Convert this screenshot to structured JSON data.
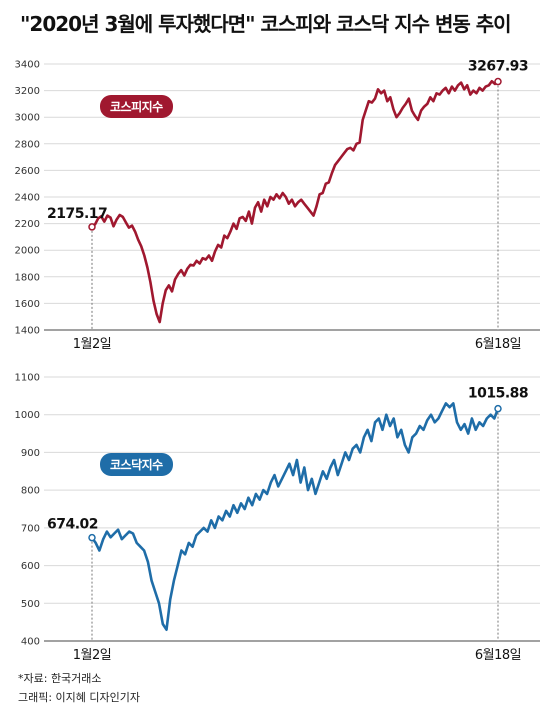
{
  "title": "\"2020년 3월에 투자했다면\" 코스피와 코스닥 지수 변동 추이",
  "footer": {
    "source": "*자료: 한국거래소",
    "credit": "그래픽: 이지혜 디자인기자"
  },
  "chart_data": [
    {
      "type": "line",
      "name": "코스피지수",
      "color": "#a0182f",
      "ylim": [
        1400,
        3400
      ],
      "yticks": [
        1400,
        1600,
        1800,
        2000,
        2200,
        2400,
        2600,
        2800,
        3000,
        3200,
        3400
      ],
      "yticklabels": [
        "1400",
        "1600",
        "1800",
        "2000",
        "2200",
        "2400",
        "2600",
        "2800",
        "3000",
        "3200",
        "3400"
      ],
      "xticklabels": [
        "1월2일",
        "6월18일"
      ],
      "start_label": "2175.17",
      "end_label": "3267.93",
      "series": [
        {
          "name": "코스피지수",
          "values": [
            2175,
            2195,
            2240,
            2255,
            2215,
            2260,
            2245,
            2180,
            2230,
            2265,
            2250,
            2210,
            2170,
            2185,
            2140,
            2080,
            2030,
            1960,
            1870,
            1760,
            1620,
            1520,
            1460,
            1600,
            1700,
            1735,
            1690,
            1780,
            1820,
            1850,
            1810,
            1860,
            1890,
            1885,
            1920,
            1900,
            1940,
            1930,
            1960,
            1920,
            1990,
            2040,
            2020,
            2110,
            2090,
            2140,
            2200,
            2160,
            2240,
            2250,
            2220,
            2290,
            2200,
            2320,
            2360,
            2290,
            2380,
            2330,
            2400,
            2380,
            2420,
            2390,
            2430,
            2400,
            2350,
            2380,
            2330,
            2360,
            2380,
            2350,
            2320,
            2290,
            2260,
            2330,
            2420,
            2430,
            2500,
            2510,
            2580,
            2640,
            2670,
            2700,
            2730,
            2760,
            2770,
            2750,
            2800,
            2810,
            2980,
            3050,
            3120,
            3110,
            3140,
            3210,
            3180,
            3200,
            3120,
            3150,
            3060,
            3000,
            3030,
            3070,
            3100,
            3140,
            3050,
            3010,
            2980,
            3050,
            3080,
            3100,
            3150,
            3120,
            3180,
            3170,
            3200,
            3220,
            3180,
            3230,
            3200,
            3240,
            3260,
            3210,
            3240,
            3170,
            3200,
            3180,
            3220,
            3200,
            3230,
            3240,
            3270,
            3250,
            3268
          ]
        }
      ]
    },
    {
      "type": "line",
      "name": "코스닥지수",
      "color": "#1f6da8",
      "ylim": [
        400,
        1100
      ],
      "yticks": [
        400,
        500,
        600,
        700,
        800,
        900,
        1000,
        1100
      ],
      "yticklabels": [
        "400",
        "500",
        "600",
        "700",
        "800",
        "900",
        "1000",
        "1100"
      ],
      "xticklabels": [
        "1월2일",
        "6월18일"
      ],
      "start_label": "674.02",
      "end_label": "1015.88",
      "series": [
        {
          "name": "코스닥지수",
          "values": [
            674,
            660,
            640,
            670,
            690,
            675,
            685,
            695,
            670,
            680,
            690,
            685,
            660,
            650,
            640,
            610,
            560,
            530,
            500,
            445,
            430,
            510,
            560,
            600,
            640,
            630,
            660,
            650,
            680,
            690,
            700,
            690,
            720,
            700,
            730,
            720,
            745,
            730,
            760,
            740,
            765,
            750,
            780,
            760,
            790,
            775,
            800,
            790,
            820,
            840,
            810,
            830,
            850,
            870,
            840,
            880,
            820,
            860,
            800,
            830,
            790,
            820,
            850,
            830,
            860,
            880,
            840,
            870,
            900,
            880,
            910,
            920,
            900,
            940,
            960,
            930,
            980,
            990,
            960,
            1000,
            970,
            990,
            940,
            960,
            920,
            900,
            940,
            950,
            970,
            960,
            985,
            1000,
            980,
            990,
            1010,
            1030,
            1020,
            1030,
            980,
            960,
            975,
            950,
            990,
            960,
            980,
            970,
            990,
            1000,
            990,
            1016
          ]
        }
      ]
    }
  ]
}
